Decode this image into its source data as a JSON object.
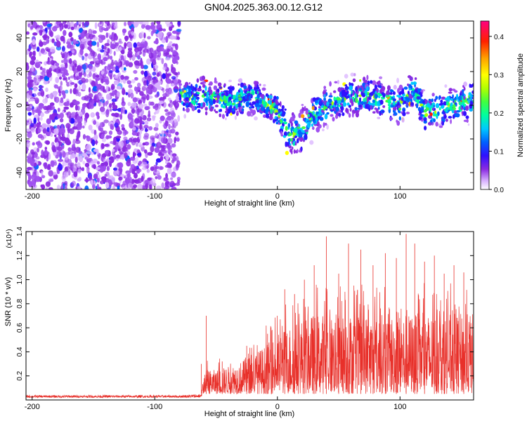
{
  "title": "GN04.2025.363.00.12.G12",
  "colors": {
    "snr_line": "#e8302a",
    "axis": "#000000",
    "background": "#ffffff"
  },
  "chart_data": [
    {
      "type": "heatmap",
      "title": "GN04.2025.363.00.12.G12",
      "xlabel": "Height of straight line (km)",
      "ylabel": "Frequency (Hz)",
      "xlim": [
        -205,
        160
      ],
      "ylim": [
        -50,
        50
      ],
      "xticks": [
        -200,
        -100,
        0,
        100
      ],
      "xtick_labels": [
        "-200",
        "-100",
        "0",
        "100"
      ],
      "yticks": [
        -40,
        -20,
        0,
        20,
        40
      ],
      "ytick_labels": [
        "-40",
        "-20",
        "0",
        "20",
        "40"
      ],
      "colorbar": {
        "label": "Normalized spectral amplitude",
        "range": [
          0,
          0.44
        ],
        "ticks": [
          0.0,
          0.1,
          0.2,
          0.3,
          0.4
        ],
        "tick_labels": [
          "0.0",
          "0.1",
          "0.2",
          "0.3",
          "0.4"
        ],
        "colormap": [
          "#ffffff",
          "#d9b3ff",
          "#8a2be2",
          "#2020ff",
          "#00c8ff",
          "#00ff80",
          "#80ff00",
          "#ffff00",
          "#ff8000",
          "#ff0000",
          "#ff0080"
        ]
      },
      "noise_region_x": [
        -205,
        -80
      ],
      "signal_band": {
        "x": [
          -80,
          -60,
          -40,
          -20,
          0,
          10,
          20,
          30,
          40,
          60,
          80,
          100,
          110,
          120,
          140,
          160
        ],
        "center_hz": [
          5,
          5,
          3,
          5,
          -3,
          -18,
          -15,
          -5,
          0,
          5,
          5,
          0,
          10,
          -5,
          0,
          3
        ],
        "half_width_hz": [
          8,
          10,
          9,
          9,
          10,
          12,
          12,
          10,
          10,
          10,
          10,
          10,
          10,
          10,
          10,
          10
        ]
      }
    },
    {
      "type": "line",
      "xlabel": "Height of straight line (km)",
      "ylabel": "SNR (10 * v/v)",
      "multiplier_label": "(x10⁴)",
      "xlim": [
        -205,
        160
      ],
      "ylim": [
        0,
        1.4
      ],
      "xticks": [
        -200,
        -100,
        0,
        100
      ],
      "xtick_labels": [
        "-200",
        "-100",
        "0",
        "100"
      ],
      "yticks": [
        0.2,
        0.4,
        0.6,
        0.8,
        1.0,
        1.2,
        1.4
      ],
      "ytick_labels": [
        "0.2",
        "0.4",
        "0.6",
        "0.8",
        "1.0",
        "1.2",
        "1.4"
      ],
      "envelope": {
        "x": [
          -205,
          -80,
          -62,
          -60,
          -50,
          -40,
          -30,
          -20,
          -10,
          0,
          10,
          20,
          30,
          40,
          60,
          80,
          100,
          120,
          140,
          160
        ],
        "baseline": [
          0.02,
          0.02,
          0.02,
          0.05,
          0.05,
          0.05,
          0.05,
          0.05,
          0.05,
          0.05,
          0.05,
          0.05,
          0.05,
          0.05,
          0.05,
          0.05,
          0.05,
          0.05,
          0.05,
          0.05
        ],
        "typical_max": [
          0.04,
          0.04,
          0.05,
          0.25,
          0.25,
          0.28,
          0.32,
          0.38,
          0.45,
          0.55,
          0.62,
          0.68,
          0.72,
          0.72,
          0.72,
          0.72,
          0.72,
          0.72,
          0.72,
          0.72
        ]
      },
      "peaks": [
        {
          "x": -58,
          "y": 0.7
        },
        {
          "x": -62,
          "y": 0.3
        },
        {
          "x": -45,
          "y": 0.32
        },
        {
          "x": -25,
          "y": 0.45
        },
        {
          "x": -8,
          "y": 0.55
        },
        {
          "x": 6,
          "y": 0.92
        },
        {
          "x": 14,
          "y": 0.88
        },
        {
          "x": 22,
          "y": 1.0
        },
        {
          "x": 30,
          "y": 1.12
        },
        {
          "x": 40,
          "y": 1.36
        },
        {
          "x": 50,
          "y": 1.05
        },
        {
          "x": 58,
          "y": 1.3
        },
        {
          "x": 68,
          "y": 1.25
        },
        {
          "x": 78,
          "y": 1.12
        },
        {
          "x": 88,
          "y": 1.22
        },
        {
          "x": 97,
          "y": 1.18
        },
        {
          "x": 105,
          "y": 1.38
        },
        {
          "x": 112,
          "y": 1.3
        },
        {
          "x": 120,
          "y": 1.15
        },
        {
          "x": 128,
          "y": 1.2
        },
        {
          "x": 136,
          "y": 1.05
        },
        {
          "x": 144,
          "y": 1.12
        },
        {
          "x": 152,
          "y": 1.06
        }
      ]
    }
  ]
}
